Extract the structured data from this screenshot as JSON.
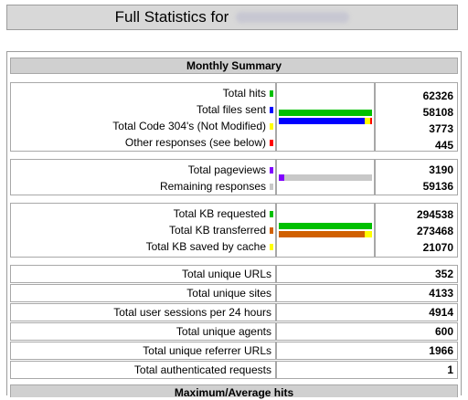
{
  "page": {
    "title": "Full Statistics for",
    "colors": {
      "header_bg": "#d0d0d0",
      "hits": "#00c000",
      "files": "#0000ff",
      "code304": "#ffff00",
      "other": "#ff0000",
      "pageviews": "#8000ff",
      "remaining": "#c8c8c8",
      "kb_transferred": "#d06000"
    }
  },
  "monthly": {
    "header": "Monthly Summary",
    "group1": {
      "labels": [
        "Total hits",
        "Total files sent",
        "Total Code 304's (Not Modified)",
        "Other responses (see below)"
      ],
      "values": [
        "62326",
        "58108",
        "3773",
        "445"
      ]
    },
    "group2": {
      "labels": [
        "Total pageviews",
        "Remaining responses"
      ],
      "values": [
        "3190",
        "59136"
      ]
    },
    "group3": {
      "labels": [
        "Total KB requested",
        "Total KB transferred",
        "Total KB saved by cache"
      ],
      "values": [
        "294538",
        "273468",
        "21070"
      ]
    },
    "rows": [
      {
        "label": "Total unique URLs",
        "value": "352"
      },
      {
        "label": "Total unique sites",
        "value": "4133"
      },
      {
        "label": "Total user sessions per 24 hours",
        "value": "4914"
      },
      {
        "label": "Total unique agents",
        "value": "600"
      },
      {
        "label": "Total unique referrer URLs",
        "value": "1966"
      },
      {
        "label": "Total authenticated requests",
        "value": "1"
      }
    ]
  },
  "maxavg": {
    "header": "Maximum/Average hits"
  }
}
